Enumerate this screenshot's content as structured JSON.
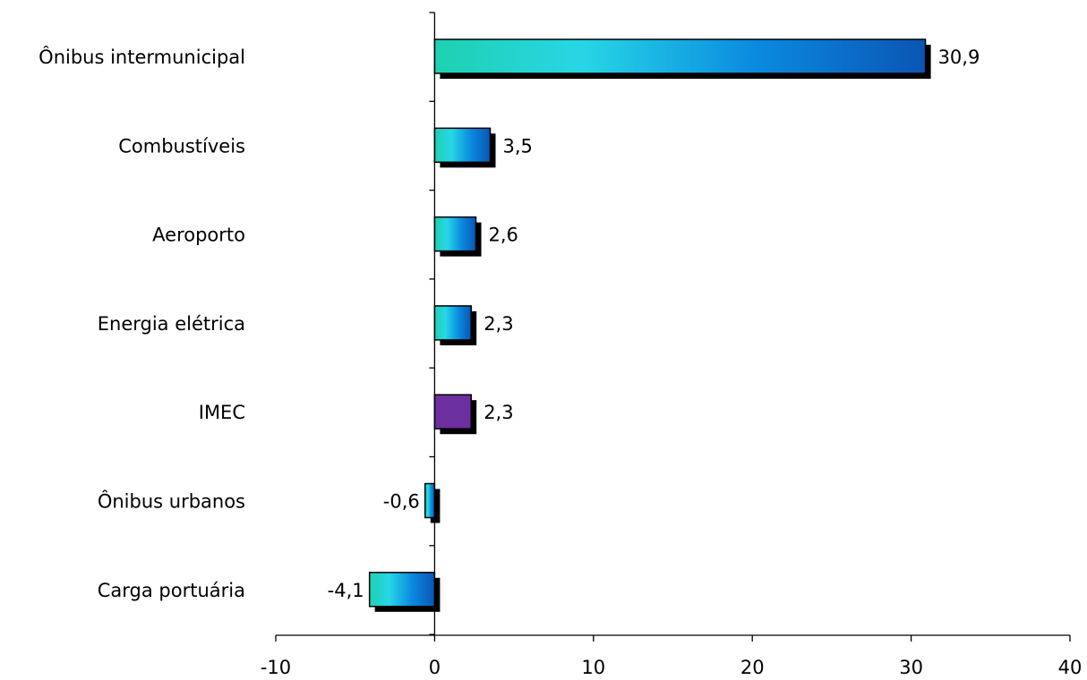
{
  "chart_data": {
    "type": "bar",
    "orientation": "horizontal",
    "title": "",
    "xlabel": "",
    "ylabel": "",
    "categories": [
      "Ônibus intermunicipal",
      "Combustíveis",
      "Aeroporto",
      "Energia elétrica",
      "IMEC",
      "Ônibus urbanos",
      "Carga portuária"
    ],
    "values": [
      30.9,
      3.5,
      2.6,
      2.3,
      2.3,
      -0.6,
      -4.1
    ],
    "value_labels": [
      "30,9",
      "3,5",
      "2,6",
      "2,3",
      "2,3",
      "-0,6",
      "-4,1"
    ],
    "highlight_category": "IMEC",
    "xlim": [
      -10,
      40
    ],
    "xticks": [
      -10,
      0,
      10,
      20,
      30,
      40
    ],
    "xtick_labels": [
      "-10",
      "0",
      "10",
      "20",
      "30",
      "40"
    ],
    "grid": false,
    "colors": {
      "gradient_start": "#1ed1b0",
      "gradient_mid": "#27d6e6",
      "gradient_mid2": "#0a8be0",
      "gradient_end": "#0b55b4",
      "highlight": "#6b2fa0",
      "shadow": "#000000"
    }
  }
}
